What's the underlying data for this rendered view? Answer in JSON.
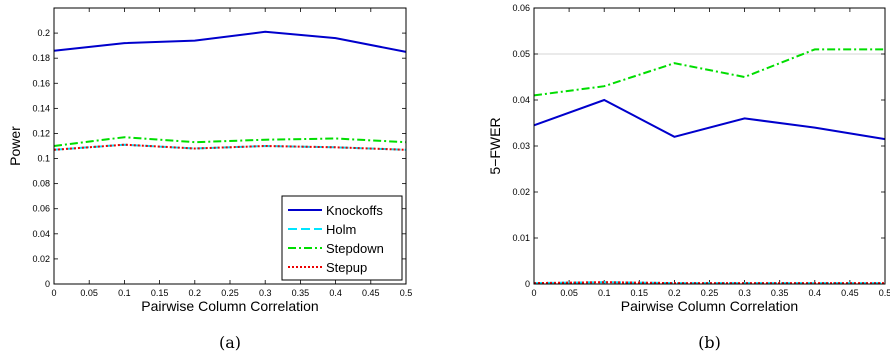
{
  "chart_data": [
    {
      "type": "line",
      "caption": "(a)",
      "xlabel": "Pairwise Column Correlation",
      "ylabel": "Power",
      "xlim": [
        0,
        0.5
      ],
      "ylim": [
        0,
        0.22
      ],
      "xticks": [
        "0",
        "0.05",
        "0.1",
        "0.15",
        "0.2",
        "0.25",
        "0.3",
        "0.35",
        "0.4",
        "0.45",
        "0.5"
      ],
      "yticks": [
        "0",
        "0.02",
        "0.04",
        "0.06",
        "0.08",
        "0.1",
        "0.12",
        "0.14",
        "0.16",
        "0.18",
        "0.2"
      ],
      "legend_position": "bottom-right",
      "x": [
        0,
        0.1,
        0.2,
        0.3,
        0.4,
        0.5
      ],
      "series": [
        {
          "name": "Knockoffs",
          "values": [
            0.186,
            0.192,
            0.194,
            0.201,
            0.196,
            0.185
          ],
          "color": "#0000cc",
          "style": "solid"
        },
        {
          "name": "Holm",
          "values": [
            0.107,
            0.111,
            0.108,
            0.11,
            0.109,
            0.107
          ],
          "color": "#00e5ff",
          "style": "dashed"
        },
        {
          "name": "Stepdown",
          "values": [
            0.11,
            0.117,
            0.113,
            0.115,
            0.116,
            0.113
          ],
          "color": "#00dd00",
          "style": "dashdot"
        },
        {
          "name": "Stepup",
          "values": [
            0.107,
            0.111,
            0.108,
            0.11,
            0.109,
            0.107
          ],
          "color": "#ee0000",
          "style": "dotted"
        }
      ]
    },
    {
      "type": "line",
      "caption": "(b)",
      "xlabel": "Pairwise Column Correlation",
      "ylabel": "5−FWER",
      "xlim": [
        0,
        0.5
      ],
      "ylim": [
        0,
        0.06
      ],
      "xticks": [
        "0",
        "0.05",
        "0.1",
        "0.15",
        "0.2",
        "0.25",
        "0.3",
        "0.35",
        "0.4",
        "0.45",
        "0.5"
      ],
      "yticks": [
        "0",
        "0.01",
        "0.02",
        "0.03",
        "0.04",
        "0.05",
        "0.06"
      ],
      "reference_line": 0.05,
      "x": [
        0,
        0.1,
        0.2,
        0.3,
        0.4,
        0.5
      ],
      "series": [
        {
          "name": "Knockoffs",
          "values": [
            0.0345,
            0.04,
            0.032,
            0.036,
            0.034,
            0.0315
          ],
          "color": "#0000cc",
          "style": "solid"
        },
        {
          "name": "Holm",
          "values": [
            0.0002,
            0.0004,
            0.0002,
            0.0002,
            0.0002,
            0.0002
          ],
          "color": "#00e5ff",
          "style": "dashed"
        },
        {
          "name": "Stepdown",
          "values": [
            0.041,
            0.043,
            0.048,
            0.045,
            0.051,
            0.051
          ],
          "color": "#00dd00",
          "style": "dashdot"
        },
        {
          "name": "Stepup",
          "values": [
            0.0002,
            0.0004,
            0.0002,
            0.0002,
            0.0002,
            0.0002
          ],
          "color": "#ee0000",
          "style": "dotted"
        }
      ]
    }
  ]
}
